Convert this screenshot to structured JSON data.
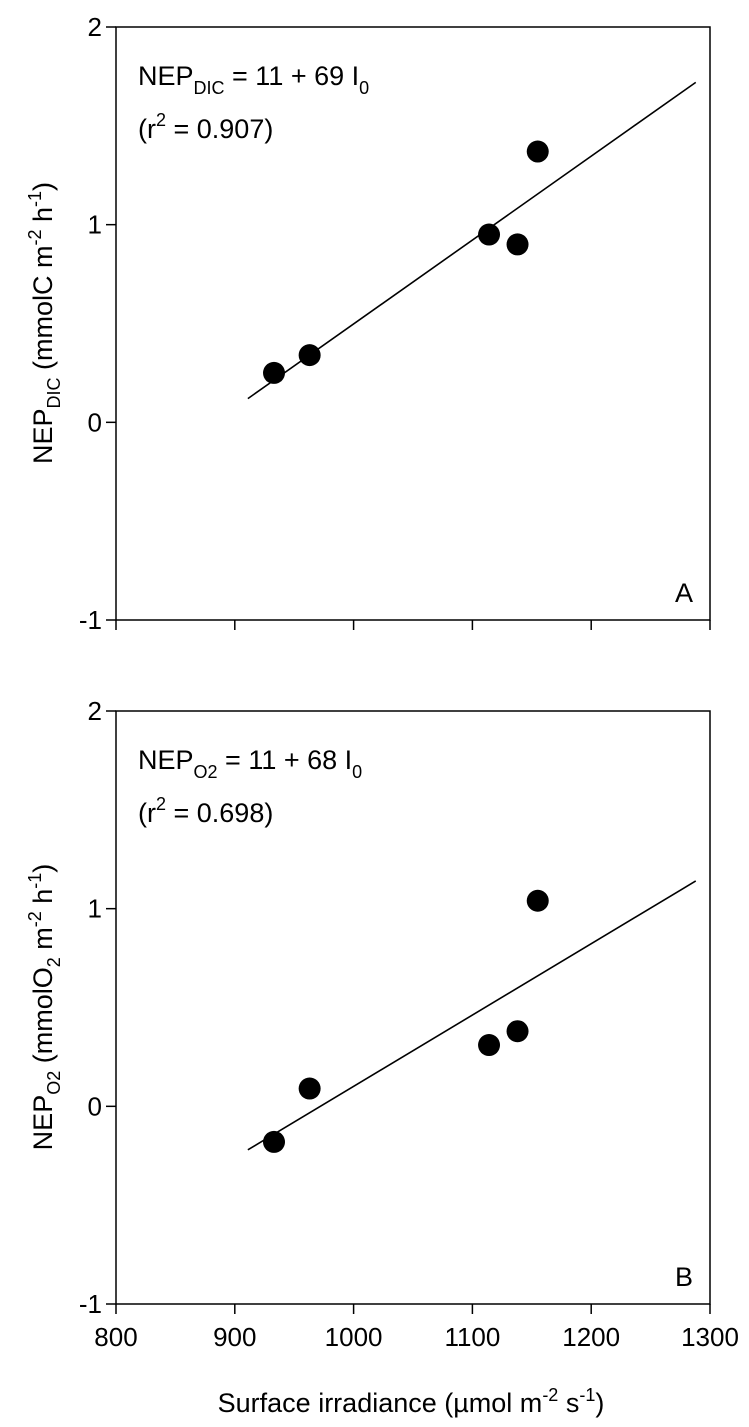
{
  "figure": {
    "xlabel": {
      "main": "Surface irradiance (µmol m",
      "sup1": "-2",
      "mid": " s",
      "sup2": "-1",
      "end": ")"
    }
  },
  "panels": [
    {
      "letter": "A",
      "ylabel": {
        "a": "NEP",
        "sub": "DIC",
        "b": " (mmolC m",
        "sup1": "-2",
        "c": " h",
        "sup2": "-1",
        "d": ")"
      },
      "equation": {
        "a": "NEP",
        "sub": "DIC",
        "b": " = 11 + 69 I",
        "sub2": "0"
      },
      "r2": {
        "a": "(r",
        "sup": "2",
        "b": " = 0.907)"
      }
    },
    {
      "letter": "B",
      "ylabel": {
        "a": "NEP",
        "sub": "O2",
        "b": " (mmolO",
        "sub2": "2",
        "c": " m",
        "sup1": "-2",
        "d": " h",
        "sup2": "-1",
        "e": ")"
      },
      "equation": {
        "a": "NEP",
        "sub": "O2",
        "b": " = 11 + 68 I",
        "sub2": "0"
      },
      "r2": {
        "a": "(r",
        "sup": "2",
        "b": " = 0.698)"
      }
    }
  ],
  "chart_data": [
    {
      "type": "scatter",
      "panel": "A",
      "xlim": [
        800,
        1300
      ],
      "ylim": [
        -1,
        2
      ],
      "x_ticks": [
        800,
        900,
        1000,
        1100,
        1200,
        1300
      ],
      "y_ticks": [
        -1,
        0,
        1,
        2
      ],
      "x_tick_labels_shown": false,
      "grid": false,
      "marker_color": "#000000",
      "line_color": "#000000",
      "points": [
        {
          "x": 933,
          "y": 0.25
        },
        {
          "x": 963,
          "y": 0.34
        },
        {
          "x": 1114,
          "y": 0.95
        },
        {
          "x": 1138,
          "y": 0.9
        },
        {
          "x": 1155,
          "y": 1.37
        }
      ],
      "regression_line": [
        {
          "x": 911,
          "y": 0.12
        },
        {
          "x": 1288,
          "y": 1.72
        }
      ]
    },
    {
      "type": "scatter",
      "panel": "B",
      "xlim": [
        800,
        1300
      ],
      "ylim": [
        -1,
        2
      ],
      "x_ticks": [
        800,
        900,
        1000,
        1100,
        1200,
        1300
      ],
      "y_ticks": [
        -1,
        0,
        1,
        2
      ],
      "x_tick_labels_shown": true,
      "grid": false,
      "marker_color": "#000000",
      "line_color": "#000000",
      "points": [
        {
          "x": 933,
          "y": -0.18
        },
        {
          "x": 963,
          "y": 0.09
        },
        {
          "x": 1114,
          "y": 0.31
        },
        {
          "x": 1138,
          "y": 0.38
        },
        {
          "x": 1155,
          "y": 1.04
        }
      ],
      "regression_line": [
        {
          "x": 911,
          "y": -0.22
        },
        {
          "x": 1288,
          "y": 1.14
        }
      ]
    }
  ]
}
